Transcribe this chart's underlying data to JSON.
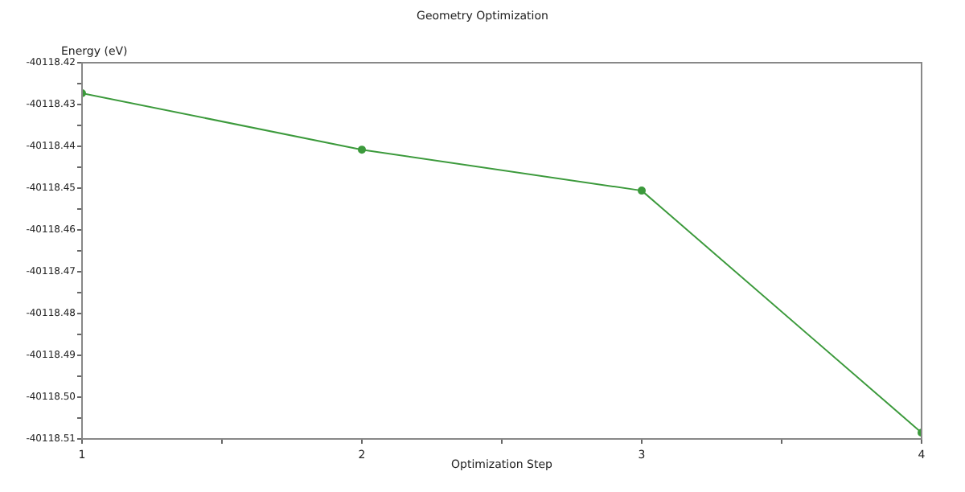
{
  "chart_data": {
    "type": "line",
    "title": "Geometry Optimization",
    "xlabel": "Optimization Step",
    "ylabel": "Energy (eV)",
    "x": [
      1,
      2,
      3,
      4
    ],
    "series": [
      {
        "color": "#3c9a3c",
        "values": [
          -40118.4273,
          -40118.4408,
          -40118.4506,
          -40118.5085
        ]
      }
    ],
    "xlim": [
      1,
      4
    ],
    "xticks": [
      1,
      {
        "value": 1.5,
        "label": null
      },
      2,
      {
        "value": 2.5,
        "label": null
      },
      3,
      {
        "value": 3.5,
        "label": null
      },
      4
    ],
    "ylim": [
      -40118.51,
      -40118.42
    ],
    "yticks": [
      -40118.42,
      {
        "value": -40118.425,
        "label": null
      },
      -40118.43,
      {
        "value": -40118.435,
        "label": null
      },
      -40118.44,
      {
        "value": -40118.445,
        "label": null
      },
      -40118.45,
      {
        "value": -40118.455,
        "label": null
      },
      -40118.46,
      {
        "value": -40118.465,
        "label": null
      },
      -40118.47,
      {
        "value": -40118.475,
        "label": null
      },
      -40118.48,
      {
        "value": -40118.485,
        "label": null
      },
      -40118.49,
      {
        "value": -40118.495,
        "label": null
      },
      {
        "value": -40118.5,
        "label": "-40118.50"
      },
      {
        "value": -40118.505,
        "label": null
      },
      -40118.51
    ],
    "grid": false,
    "legend": false,
    "marker": "circle",
    "line_style": "solid"
  }
}
